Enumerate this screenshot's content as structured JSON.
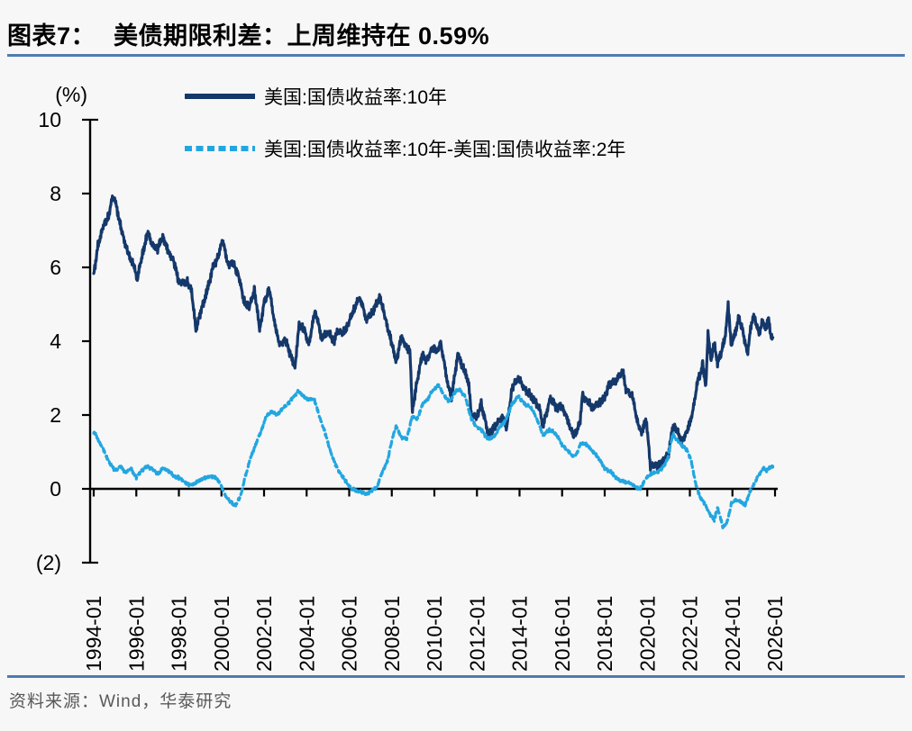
{
  "header": {
    "title_prefix": "图表7：",
    "title_text": "美债期限利差：上周维持在 0.59%"
  },
  "legend": {
    "items": [
      {
        "label": "美国:国债收益率:10年",
        "color": "#15386B",
        "line_style": "solid"
      },
      {
        "label": "美国:国债收益率:10年-美国:国债收益率:2年",
        "color": "#22A6E0",
        "line_style": "dashed"
      }
    ]
  },
  "axes": {
    "unit_label": "(%)",
    "y_tick_labels": [
      "10",
      "8",
      "6",
      "4",
      "2",
      "0",
      "(2)"
    ],
    "y_tick_values": [
      10,
      8,
      6,
      4,
      2,
      0,
      -2
    ],
    "x_tick_labels": [
      "1994-01",
      "1996-01",
      "1998-01",
      "2000-01",
      "2002-01",
      "2004-01",
      "2006-01",
      "2008-01",
      "2010-01",
      "2012-01",
      "2014-01",
      "2016-01",
      "2018-01",
      "2020-01",
      "2022-01",
      "2024-01",
      "2026-01"
    ],
    "x_tick_years": [
      1994,
      1996,
      1998,
      2000,
      2002,
      2004,
      2006,
      2008,
      2010,
      2012,
      2014,
      2016,
      2018,
      2020,
      2022,
      2024,
      2026
    ]
  },
  "footer": {
    "source_text": "资料来源：Wind，华泰研究"
  },
  "colors": {
    "series_10y": "#15386B",
    "series_spread": "#22A6E0",
    "divider": "#4e7cb0",
    "axis": "#000000",
    "footer_text": "#595959",
    "background": "#f7f7f7"
  },
  "chart_data": {
    "type": "line",
    "title": "美债期限利差：上周维持在 0.59%",
    "ylabel": "(%)",
    "ylim": [
      -2,
      10
    ],
    "xlim": [
      1994,
      2026.4
    ],
    "grid": false,
    "legend_position": "top-left",
    "x_format": "decimal year (1994.0 = 1994-01)",
    "last_value_spread_pct": 0.59,
    "series": [
      {
        "name": "美国:国债收益率:10年",
        "color": "#15386B",
        "style": "solid",
        "points": [
          [
            1994.0,
            5.8
          ],
          [
            1994.2,
            6.6
          ],
          [
            1994.45,
            7.1
          ],
          [
            1994.7,
            7.4
          ],
          [
            1994.9,
            7.95
          ],
          [
            1995.05,
            7.7
          ],
          [
            1995.3,
            7.0
          ],
          [
            1995.6,
            6.4
          ],
          [
            1995.9,
            6.0
          ],
          [
            1996.05,
            5.7
          ],
          [
            1996.3,
            6.4
          ],
          [
            1996.55,
            6.95
          ],
          [
            1996.75,
            6.6
          ],
          [
            1997.0,
            6.5
          ],
          [
            1997.25,
            6.85
          ],
          [
            1997.5,
            6.4
          ],
          [
            1997.75,
            6.2
          ],
          [
            1998.0,
            5.6
          ],
          [
            1998.4,
            5.6
          ],
          [
            1998.6,
            5.35
          ],
          [
            1998.8,
            4.3
          ],
          [
            1999.0,
            4.75
          ],
          [
            1999.3,
            5.3
          ],
          [
            1999.6,
            6.0
          ],
          [
            1999.85,
            6.3
          ],
          [
            2000.05,
            6.75
          ],
          [
            2000.3,
            6.1
          ],
          [
            2000.55,
            6.1
          ],
          [
            2000.8,
            5.8
          ],
          [
            2001.05,
            5.1
          ],
          [
            2001.3,
            4.9
          ],
          [
            2001.55,
            5.4
          ],
          [
            2001.8,
            4.3
          ],
          [
            2002.0,
            5.05
          ],
          [
            2002.25,
            5.4
          ],
          [
            2002.55,
            4.3
          ],
          [
            2002.75,
            3.9
          ],
          [
            2003.0,
            4.05
          ],
          [
            2003.2,
            3.7
          ],
          [
            2003.45,
            3.3
          ],
          [
            2003.65,
            4.45
          ],
          [
            2003.9,
            4.3
          ],
          [
            2004.1,
            3.9
          ],
          [
            2004.4,
            4.85
          ],
          [
            2004.7,
            4.1
          ],
          [
            2005.0,
            4.25
          ],
          [
            2005.3,
            4.0
          ],
          [
            2005.45,
            4.3
          ],
          [
            2005.7,
            4.2
          ],
          [
            2005.95,
            4.45
          ],
          [
            2006.2,
            4.85
          ],
          [
            2006.5,
            5.2
          ],
          [
            2006.8,
            4.6
          ],
          [
            2007.05,
            4.75
          ],
          [
            2007.45,
            5.2
          ],
          [
            2007.7,
            4.6
          ],
          [
            2007.95,
            4.05
          ],
          [
            2008.2,
            3.45
          ],
          [
            2008.45,
            4.1
          ],
          [
            2008.7,
            3.85
          ],
          [
            2008.85,
            3.7
          ],
          [
            2008.97,
            2.1
          ],
          [
            2009.15,
            2.8
          ],
          [
            2009.45,
            3.7
          ],
          [
            2009.6,
            3.45
          ],
          [
            2009.95,
            3.85
          ],
          [
            2010.1,
            3.7
          ],
          [
            2010.3,
            3.95
          ],
          [
            2010.6,
            2.95
          ],
          [
            2010.8,
            2.45
          ],
          [
            2011.1,
            3.65
          ],
          [
            2011.4,
            3.2
          ],
          [
            2011.6,
            2.9
          ],
          [
            2011.75,
            1.95
          ],
          [
            2012.0,
            1.95
          ],
          [
            2012.2,
            2.3
          ],
          [
            2012.55,
            1.45
          ],
          [
            2012.9,
            1.75
          ],
          [
            2013.2,
            1.95
          ],
          [
            2013.4,
            1.65
          ],
          [
            2013.65,
            2.75
          ],
          [
            2013.95,
            3.0
          ],
          [
            2014.3,
            2.65
          ],
          [
            2014.6,
            2.5
          ],
          [
            2014.95,
            2.15
          ],
          [
            2015.1,
            1.7
          ],
          [
            2015.45,
            2.45
          ],
          [
            2015.75,
            2.2
          ],
          [
            2016.0,
            2.25
          ],
          [
            2016.3,
            1.8
          ],
          [
            2016.55,
            1.4
          ],
          [
            2016.85,
            1.8
          ],
          [
            2016.95,
            2.55
          ],
          [
            2017.2,
            2.35
          ],
          [
            2017.45,
            2.2
          ],
          [
            2017.7,
            2.3
          ],
          [
            2018.0,
            2.45
          ],
          [
            2018.2,
            2.85
          ],
          [
            2018.5,
            2.9
          ],
          [
            2018.85,
            3.2
          ],
          [
            2019.0,
            2.7
          ],
          [
            2019.3,
            2.5
          ],
          [
            2019.6,
            1.65
          ],
          [
            2019.75,
            1.55
          ],
          [
            2019.95,
            1.9
          ],
          [
            2020.15,
            0.6
          ],
          [
            2020.4,
            0.65
          ],
          [
            2020.6,
            0.65
          ],
          [
            2020.8,
            0.75
          ],
          [
            2021.0,
            0.95
          ],
          [
            2021.2,
            1.7
          ],
          [
            2021.45,
            1.55
          ],
          [
            2021.6,
            1.25
          ],
          [
            2021.85,
            1.55
          ],
          [
            2022.0,
            1.75
          ],
          [
            2022.2,
            2.3
          ],
          [
            2022.35,
            2.9
          ],
          [
            2022.5,
            3.1
          ],
          [
            2022.6,
            3.45
          ],
          [
            2022.75,
            2.7
          ],
          [
            2022.85,
            4.2
          ],
          [
            2023.0,
            3.5
          ],
          [
            2023.15,
            3.95
          ],
          [
            2023.3,
            3.4
          ],
          [
            2023.5,
            3.75
          ],
          [
            2023.65,
            4.1
          ],
          [
            2023.8,
            4.95
          ],
          [
            2023.95,
            3.9
          ],
          [
            2024.1,
            4.15
          ],
          [
            2024.3,
            4.65
          ],
          [
            2024.5,
            4.25
          ],
          [
            2024.7,
            3.65
          ],
          [
            2024.85,
            4.3
          ],
          [
            2025.0,
            4.75
          ],
          [
            2025.1,
            4.5
          ],
          [
            2025.25,
            4.2
          ],
          [
            2025.4,
            4.55
          ],
          [
            2025.55,
            4.35
          ],
          [
            2025.7,
            4.6
          ],
          [
            2025.8,
            4.1
          ],
          [
            2025.9,
            4.1
          ]
        ]
      },
      {
        "name": "美国:国债收益率:10年-美国:国债收益率:2年",
        "color": "#22A6E0",
        "style": "dashed",
        "points": [
          [
            1994.0,
            1.55
          ],
          [
            1994.25,
            1.3
          ],
          [
            1994.5,
            1.0
          ],
          [
            1994.75,
            0.7
          ],
          [
            1995.0,
            0.5
          ],
          [
            1995.25,
            0.6
          ],
          [
            1995.5,
            0.45
          ],
          [
            1995.75,
            0.55
          ],
          [
            1996.0,
            0.3
          ],
          [
            1996.25,
            0.5
          ],
          [
            1996.5,
            0.6
          ],
          [
            1996.75,
            0.55
          ],
          [
            1997.0,
            0.4
          ],
          [
            1997.25,
            0.55
          ],
          [
            1997.5,
            0.5
          ],
          [
            1997.75,
            0.35
          ],
          [
            1998.0,
            0.3
          ],
          [
            1998.25,
            0.2
          ],
          [
            1998.5,
            0.1
          ],
          [
            1998.75,
            0.15
          ],
          [
            1999.0,
            0.25
          ],
          [
            1999.25,
            0.3
          ],
          [
            1999.5,
            0.35
          ],
          [
            1999.75,
            0.3
          ],
          [
            1999.95,
            0.15
          ],
          [
            2000.15,
            -0.15
          ],
          [
            2000.4,
            -0.35
          ],
          [
            2000.65,
            -0.45
          ],
          [
            2000.9,
            -0.2
          ],
          [
            2001.1,
            0.3
          ],
          [
            2001.35,
            0.8
          ],
          [
            2001.6,
            1.2
          ],
          [
            2001.85,
            1.55
          ],
          [
            2002.1,
            1.95
          ],
          [
            2002.35,
            2.1
          ],
          [
            2002.6,
            2.0
          ],
          [
            2002.85,
            2.15
          ],
          [
            2003.1,
            2.3
          ],
          [
            2003.35,
            2.45
          ],
          [
            2003.6,
            2.65
          ],
          [
            2003.85,
            2.5
          ],
          [
            2004.1,
            2.4
          ],
          [
            2004.35,
            2.45
          ],
          [
            2004.6,
            1.95
          ],
          [
            2004.85,
            1.55
          ],
          [
            2005.1,
            1.05
          ],
          [
            2005.35,
            0.65
          ],
          [
            2005.6,
            0.4
          ],
          [
            2005.85,
            0.2
          ],
          [
            2006.1,
            0.0
          ],
          [
            2006.35,
            -0.05
          ],
          [
            2006.6,
            -0.1
          ],
          [
            2006.85,
            -0.15
          ],
          [
            2007.05,
            -0.05
          ],
          [
            2007.3,
            0.05
          ],
          [
            2007.55,
            0.45
          ],
          [
            2007.8,
            0.75
          ],
          [
            2008.0,
            1.3
          ],
          [
            2008.2,
            1.7
          ],
          [
            2008.45,
            1.4
          ],
          [
            2008.7,
            1.35
          ],
          [
            2008.95,
            1.95
          ],
          [
            2009.2,
            1.9
          ],
          [
            2009.45,
            2.3
          ],
          [
            2009.7,
            2.45
          ],
          [
            2009.95,
            2.7
          ],
          [
            2010.2,
            2.8
          ],
          [
            2010.45,
            2.55
          ],
          [
            2010.7,
            2.35
          ],
          [
            2010.95,
            2.6
          ],
          [
            2011.15,
            2.7
          ],
          [
            2011.45,
            2.5
          ],
          [
            2011.7,
            1.95
          ],
          [
            2011.95,
            1.7
          ],
          [
            2012.2,
            1.6
          ],
          [
            2012.5,
            1.35
          ],
          [
            2012.8,
            1.4
          ],
          [
            2013.05,
            1.65
          ],
          [
            2013.35,
            1.85
          ],
          [
            2013.65,
            2.3
          ],
          [
            2013.95,
            2.5
          ],
          [
            2014.25,
            2.3
          ],
          [
            2014.55,
            2.2
          ],
          [
            2014.85,
            1.85
          ],
          [
            2015.1,
            1.45
          ],
          [
            2015.4,
            1.6
          ],
          [
            2015.7,
            1.5
          ],
          [
            2016.0,
            1.2
          ],
          [
            2016.3,
            1.0
          ],
          [
            2016.6,
            0.85
          ],
          [
            2016.9,
            1.25
          ],
          [
            2017.15,
            1.2
          ],
          [
            2017.4,
            1.05
          ],
          [
            2017.7,
            0.85
          ],
          [
            2018.0,
            0.55
          ],
          [
            2018.3,
            0.45
          ],
          [
            2018.6,
            0.25
          ],
          [
            2018.9,
            0.2
          ],
          [
            2019.2,
            0.15
          ],
          [
            2019.45,
            0.05
          ],
          [
            2019.65,
            -0.02
          ],
          [
            2019.9,
            0.25
          ],
          [
            2020.15,
            0.4
          ],
          [
            2020.45,
            0.45
          ],
          [
            2020.7,
            0.55
          ],
          [
            2020.95,
            0.8
          ],
          [
            2021.2,
            1.5
          ],
          [
            2021.35,
            1.35
          ],
          [
            2021.6,
            1.2
          ],
          [
            2021.85,
            1.05
          ],
          [
            2022.05,
            0.8
          ],
          [
            2022.25,
            0.2
          ],
          [
            2022.45,
            -0.2
          ],
          [
            2022.7,
            -0.4
          ],
          [
            2022.95,
            -0.7
          ],
          [
            2023.15,
            -0.85
          ],
          [
            2023.3,
            -0.5
          ],
          [
            2023.55,
            -1.05
          ],
          [
            2023.75,
            -0.9
          ],
          [
            2023.95,
            -0.4
          ],
          [
            2024.15,
            -0.3
          ],
          [
            2024.4,
            -0.35
          ],
          [
            2024.6,
            -0.45
          ],
          [
            2024.8,
            -0.1
          ],
          [
            2025.0,
            0.1
          ],
          [
            2025.2,
            0.35
          ],
          [
            2025.45,
            0.55
          ],
          [
            2025.65,
            0.5
          ],
          [
            2025.8,
            0.62
          ],
          [
            2025.9,
            0.59
          ]
        ]
      }
    ]
  }
}
